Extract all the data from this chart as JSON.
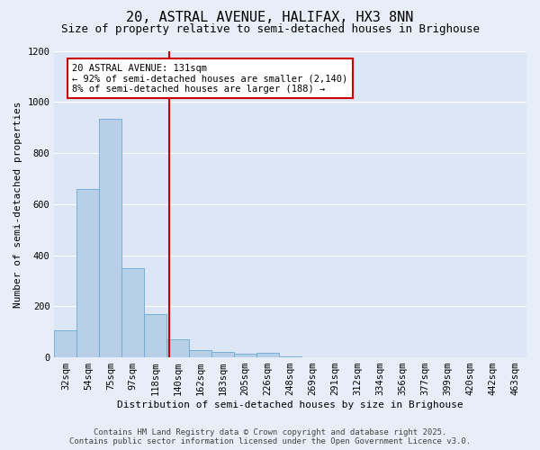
{
  "title_line1": "20, ASTRAL AVENUE, HALIFAX, HX3 8NN",
  "title_line2": "Size of property relative to semi-detached houses in Brighouse",
  "xlabel": "Distribution of semi-detached houses by size in Brighouse",
  "ylabel": "Number of semi-detached properties",
  "bar_color": "#b8cfe8",
  "bar_edge_color": "#6aaad4",
  "background_color": "#dce6f5",
  "fig_background_color": "#e8eef8",
  "grid_color": "#ffffff",
  "vline_color": "#cc0000",
  "categories": [
    "32sqm",
    "54sqm",
    "75sqm",
    "97sqm",
    "118sqm",
    "140sqm",
    "162sqm",
    "183sqm",
    "205sqm",
    "226sqm",
    "248sqm",
    "269sqm",
    "291sqm",
    "312sqm",
    "334sqm",
    "356sqm",
    "377sqm",
    "399sqm",
    "420sqm",
    "442sqm",
    "463sqm"
  ],
  "values": [
    105,
    660,
    935,
    350,
    170,
    70,
    30,
    22,
    13,
    18,
    5,
    2,
    1,
    1,
    1,
    1,
    0,
    0,
    0,
    0,
    0
  ],
  "ylim": [
    0,
    1200
  ],
  "yticks": [
    0,
    200,
    400,
    600,
    800,
    1000,
    1200
  ],
  "vline_x": 4.59,
  "annotation_text_line1": "20 ASTRAL AVENUE: 131sqm",
  "annotation_text_line2": "← 92% of semi-detached houses are smaller (2,140)",
  "annotation_text_line3": "8% of semi-detached houses are larger (188) →",
  "footer_text": "Contains HM Land Registry data © Crown copyright and database right 2025.\nContains public sector information licensed under the Open Government Licence v3.0.",
  "title_fontsize": 11,
  "subtitle_fontsize": 9,
  "axis_label_fontsize": 8,
  "tick_fontsize": 7.5,
  "annotation_fontsize": 7.5,
  "footer_fontsize": 6.5
}
